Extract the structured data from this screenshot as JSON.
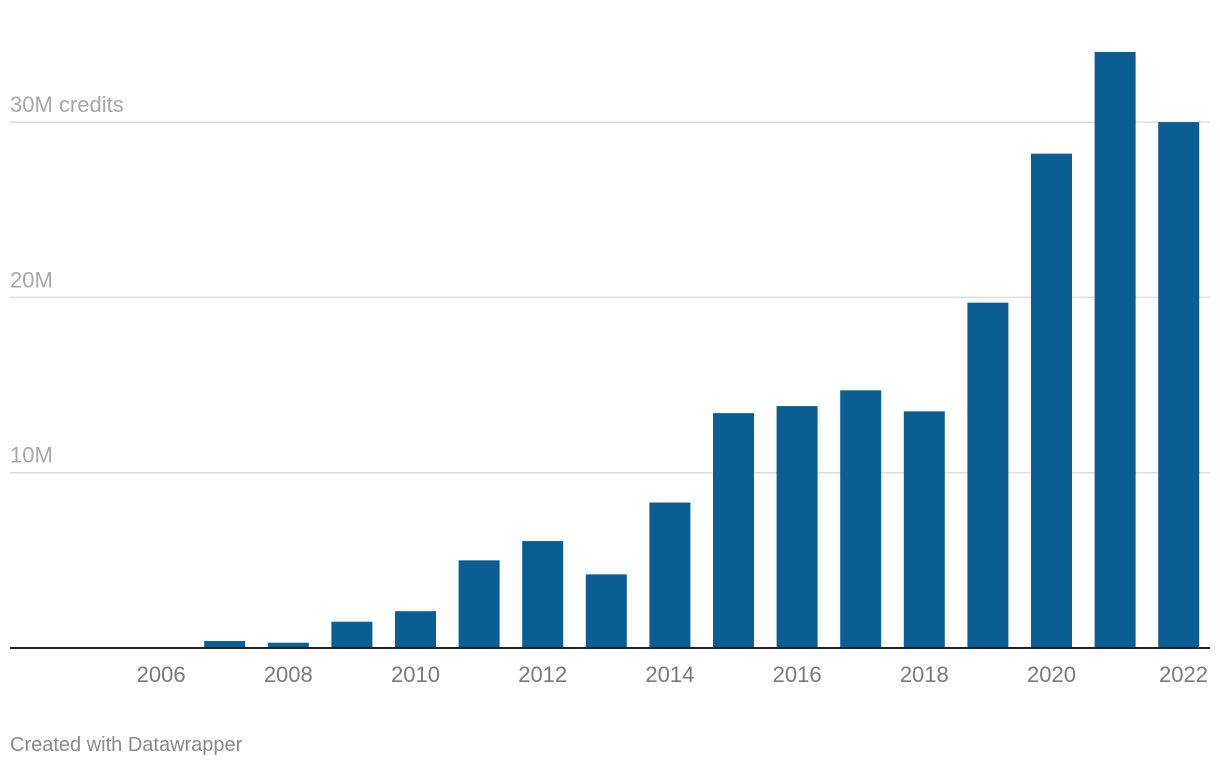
{
  "chart_data": {
    "type": "bar",
    "categories": [
      "2005",
      "2006",
      "2007",
      "2008",
      "2009",
      "2010",
      "2011",
      "2012",
      "2013",
      "2014",
      "2015",
      "2016",
      "2017",
      "2018",
      "2019",
      "2020",
      "2021",
      "2022"
    ],
    "series": [
      {
        "values": [
          0,
          0,
          0.4,
          0.3,
          1.5,
          2.1,
          5.0,
          6.1,
          4.2,
          8.3,
          13.4,
          13.8,
          14.7,
          13.5,
          19.7,
          28.2,
          34.0,
          30.0
        ]
      }
    ],
    "x_tick_labels": [
      "2006",
      "2008",
      "2010",
      "2012",
      "2014",
      "2016",
      "2018",
      "2020",
      "2022"
    ],
    "y_ticks": [
      {
        "value": 10,
        "label": "10M"
      },
      {
        "value": 20,
        "label": "20M"
      },
      {
        "value": 30,
        "label": "30M credits"
      }
    ],
    "ylim": [
      0,
      35
    ],
    "grid": true,
    "bar_color": "#0b5e94",
    "gridline_color": "#dddddd",
    "axis_color": "#222222"
  },
  "footer": {
    "credit": "Created with Datawrapper"
  }
}
